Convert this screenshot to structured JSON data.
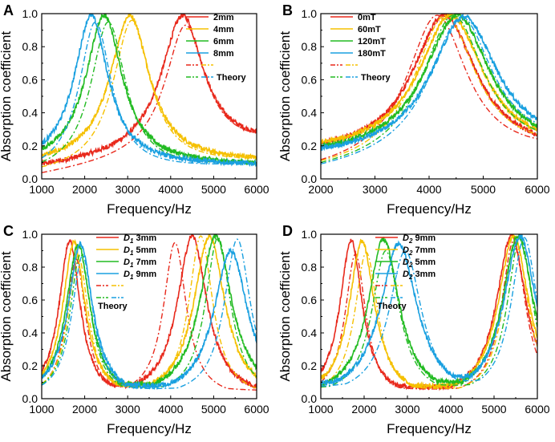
{
  "chart_data": [
    {
      "id": "A",
      "type": "line",
      "panel_label": "A",
      "xlabel": "Frequency/Hz",
      "ylabel": "Absorption coefficient",
      "xlim": [
        1000,
        6000
      ],
      "ylim": [
        0,
        1.0
      ],
      "xticks": [
        "1000",
        "2000",
        "3000",
        "4000",
        "5000",
        "6000"
      ],
      "yticks": [
        "0.0",
        "0.2",
        "0.4",
        "0.6",
        "0.8",
        "1.0"
      ],
      "legend_position": "top-right",
      "legend_theory_label": "Theory",
      "series": [
        {
          "name": "2mm",
          "color": "#e8291c",
          "peak_x": 4280,
          "peak_y": 0.99,
          "width": 600,
          "base_left": 0.06,
          "base_right": 0.2,
          "theory_peak_x": 4350,
          "theory_peak_y": 0.93
        },
        {
          "name": "4mm",
          "color": "#f5c000",
          "peak_x": 3050,
          "peak_y": 0.99,
          "width": 560,
          "base_left": 0.08,
          "base_right": 0.1,
          "theory_peak_x": 3100,
          "theory_peak_y": 0.96
        },
        {
          "name": "6mm",
          "color": "#22bb22",
          "peak_x": 2450,
          "peak_y": 0.99,
          "width": 520,
          "base_left": 0.08,
          "base_right": 0.08,
          "theory_peak_x": 2550,
          "theory_peak_y": 0.95
        },
        {
          "name": "8mm",
          "color": "#1aa0e0",
          "peak_x": 2150,
          "peak_y": 0.99,
          "width": 480,
          "base_left": 0.08,
          "base_right": 0.08,
          "theory_peak_x": 2250,
          "theory_peak_y": 0.95
        }
      ]
    },
    {
      "id": "B",
      "type": "line",
      "panel_label": "B",
      "xlabel": "Frequency/Hz",
      "ylabel": "Absorption coefficient",
      "xlim": [
        2000,
        6000
      ],
      "ylim": [
        0,
        1.0
      ],
      "xticks": [
        "2000",
        "3000",
        "4000",
        "5000",
        "6000"
      ],
      "yticks": [
        "0.0",
        "0.2",
        "0.4",
        "0.6",
        "0.8",
        "1.0"
      ],
      "legend_position": "top-left",
      "legend_theory_label": "Theory",
      "series": [
        {
          "name": "0mT",
          "color": "#e8291c",
          "peak_x": 4280,
          "peak_y": 0.99,
          "width": 720,
          "base_left": 0.14,
          "base_right": 0.14,
          "theory_peak_x": 4150,
          "theory_peak_y": 0.99
        },
        {
          "name": "60mT",
          "color": "#f5c000",
          "peak_x": 4400,
          "peak_y": 0.99,
          "width": 730,
          "base_left": 0.15,
          "base_right": 0.15,
          "theory_peak_x": 4300,
          "theory_peak_y": 0.99
        },
        {
          "name": "120mT",
          "color": "#22bb22",
          "peak_x": 4520,
          "peak_y": 0.99,
          "width": 740,
          "base_left": 0.13,
          "base_right": 0.15,
          "theory_peak_x": 4450,
          "theory_peak_y": 0.99
        },
        {
          "name": "180mT",
          "color": "#1aa0e0",
          "peak_x": 4650,
          "peak_y": 0.98,
          "width": 750,
          "base_left": 0.12,
          "base_right": 0.17,
          "theory_peak_x": 4600,
          "theory_peak_y": 0.98
        }
      ]
    },
    {
      "id": "C",
      "type": "line",
      "panel_label": "C",
      "xlabel": "Frequency/Hz",
      "ylabel": "Absorption coefficient",
      "xlim": [
        1000,
        6000
      ],
      "ylim": [
        0,
        1.0
      ],
      "xticks": [
        "1000",
        "2000",
        "3000",
        "4000",
        "5000",
        "6000"
      ],
      "yticks": [
        "0.0",
        "0.2",
        "0.4",
        "0.6",
        "0.8",
        "1.0"
      ],
      "legend_position": "top-center",
      "legend_theory_label": "Theory",
      "series": [
        {
          "name": "3mm",
          "sym": "D",
          "sub": "1",
          "color": "#e8291c",
          "peaks": [
            [
              1650,
              0.96,
              300
            ],
            [
              4500,
              0.99,
              420
            ]
          ],
          "base": 0.14,
          "theory_peaks": [
            [
              1800,
              0.85,
              320
            ],
            [
              4100,
              0.95,
              380
            ]
          ]
        },
        {
          "name": "5mm",
          "sym": "D",
          "sub": "1",
          "color": "#f5c000",
          "peaks": [
            [
              1750,
              0.95,
              320
            ],
            [
              4900,
              0.99,
              440
            ]
          ],
          "base": 0.15,
          "theory_peaks": [
            [
              1850,
              0.87,
              340
            ],
            [
              4700,
              0.99,
              400
            ]
          ]
        },
        {
          "name": "7mm",
          "sym": "D",
          "sub": "1",
          "color": "#22bb22",
          "peaks": [
            [
              1850,
              0.94,
              340
            ],
            [
              5050,
              0.99,
              460
            ]
          ],
          "base": 0.15,
          "theory_peaks": [
            [
              1900,
              0.88,
              350
            ],
            [
              5100,
              0.98,
              420
            ]
          ]
        },
        {
          "name": "9mm",
          "sym": "D",
          "sub": "1",
          "color": "#1aa0e0",
          "peaks": [
            [
              1900,
              0.94,
              350
            ],
            [
              5400,
              0.9,
              480
            ]
          ],
          "base": 0.14,
          "theory_peaks": [
            [
              1950,
              0.87,
              360
            ],
            [
              5550,
              0.97,
              440
            ]
          ]
        }
      ]
    },
    {
      "id": "D",
      "type": "line",
      "panel_label": "D",
      "xlabel": "Frequency/Hz",
      "ylabel": "Absorption coefficient",
      "xlim": [
        1000,
        6000
      ],
      "ylim": [
        0,
        1.0
      ],
      "xticks": [
        "1000",
        "2000",
        "3000",
        "4000",
        "5000",
        "6000"
      ],
      "yticks": [
        "0.0",
        "0.2",
        "0.4",
        "0.6",
        "0.8",
        "1.0"
      ],
      "legend_position": "top-center",
      "legend_theory_label": "Theory",
      "series": [
        {
          "name": "9mm",
          "sym": "D",
          "sub": "2",
          "color": "#e8291c",
          "peaks": [
            [
              1700,
              0.96,
              320
            ],
            [
              5400,
              0.99,
              420
            ]
          ],
          "base": 0.14,
          "theory_peaks": [
            [
              1800,
              0.88,
              340
            ],
            [
              5450,
              0.96,
              400
            ]
          ]
        },
        {
          "name": "7mm",
          "sym": "D",
          "sub": "2",
          "color": "#f5c000",
          "peaks": [
            [
              1950,
              0.96,
              360
            ],
            [
              5450,
              0.99,
              430
            ]
          ],
          "base": 0.14,
          "theory_peaks": [
            [
              2050,
              0.89,
              380
            ],
            [
              5500,
              0.97,
              410
            ]
          ]
        },
        {
          "name": "5mm",
          "sym": "D",
          "sub": "2",
          "color": "#22bb22",
          "peaks": [
            [
              2450,
              0.97,
              440
            ],
            [
              5550,
              0.99,
              440
            ]
          ],
          "base": 0.16,
          "theory_peaks": [
            [
              2500,
              0.9,
              460
            ],
            [
              5600,
              0.98,
              420
            ]
          ]
        },
        {
          "name": "3mm",
          "sym": "D",
          "sub": "2",
          "color": "#1aa0e0",
          "peaks": [
            [
              2800,
              0.94,
              520
            ],
            [
              5600,
              0.99,
              460
            ]
          ],
          "base": 0.18,
          "theory_peaks": [
            [
              2950,
              0.9,
              540
            ],
            [
              5700,
              0.98,
              440
            ]
          ]
        }
      ]
    }
  ]
}
